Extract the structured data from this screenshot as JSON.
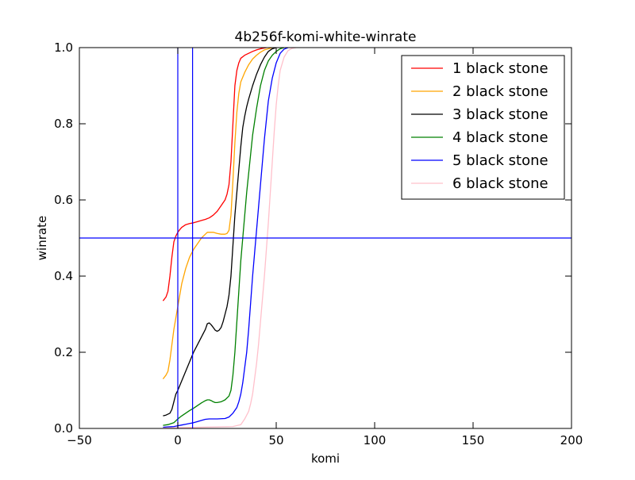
{
  "chart_data": {
    "type": "line",
    "title": "4b256f-komi-white-winrate",
    "xlabel": "komi",
    "ylabel": "winrate",
    "xlim": [
      -50,
      200
    ],
    "ylim": [
      0.0,
      1.0
    ],
    "xticks": [
      "−50",
      "0",
      "50",
      "100",
      "150",
      "200"
    ],
    "xtick_values": [
      -50,
      0,
      50,
      100,
      150,
      200
    ],
    "yticks": [
      "0.0",
      "0.2",
      "0.4",
      "0.6",
      "0.8",
      "1.0"
    ],
    "ytick_values": [
      0.0,
      0.2,
      0.4,
      0.6,
      0.8,
      1.0
    ],
    "grid": false,
    "legend_position": "top-right",
    "reference_lines": {
      "vertical_x": [
        0,
        7.5
      ],
      "horizontal_y": [
        0.5
      ],
      "color": "#0000ff"
    },
    "series": [
      {
        "name": "1 black stone",
        "color": "#ff0000",
        "points": [
          [
            -7.5,
            0.335
          ],
          [
            -6,
            0.345
          ],
          [
            -5,
            0.36
          ],
          [
            -4,
            0.4
          ],
          [
            -3,
            0.45
          ],
          [
            -2,
            0.49
          ],
          [
            -1,
            0.505
          ],
          [
            0,
            0.515
          ],
          [
            1,
            0.522
          ],
          [
            2,
            0.528
          ],
          [
            4,
            0.535
          ],
          [
            6,
            0.538
          ],
          [
            8,
            0.54
          ],
          [
            10,
            0.543
          ],
          [
            12,
            0.546
          ],
          [
            14,
            0.549
          ],
          [
            16,
            0.553
          ],
          [
            18,
            0.56
          ],
          [
            20,
            0.57
          ],
          [
            22,
            0.585
          ],
          [
            24,
            0.6
          ],
          [
            25,
            0.615
          ],
          [
            26,
            0.64
          ],
          [
            27,
            0.7
          ],
          [
            28,
            0.8
          ],
          [
            29,
            0.9
          ],
          [
            30,
            0.94
          ],
          [
            31,
            0.96
          ],
          [
            32,
            0.972
          ],
          [
            34,
            0.98
          ],
          [
            36,
            0.985
          ],
          [
            38,
            0.99
          ],
          [
            40,
            0.994
          ],
          [
            42,
            0.997
          ],
          [
            45,
            1.0
          ]
        ]
      },
      {
        "name": "2 black stone",
        "color": "#ffa500",
        "points": [
          [
            -7.5,
            0.13
          ],
          [
            -6,
            0.14
          ],
          [
            -5,
            0.15
          ],
          [
            -4,
            0.18
          ],
          [
            -3,
            0.22
          ],
          [
            -2,
            0.26
          ],
          [
            -1,
            0.29
          ],
          [
            0,
            0.32
          ],
          [
            2,
            0.38
          ],
          [
            4,
            0.42
          ],
          [
            6,
            0.45
          ],
          [
            8,
            0.47
          ],
          [
            10,
            0.485
          ],
          [
            12,
            0.5
          ],
          [
            14,
            0.51
          ],
          [
            15,
            0.515
          ],
          [
            16,
            0.515
          ],
          [
            18,
            0.515
          ],
          [
            20,
            0.512
          ],
          [
            22,
            0.51
          ],
          [
            24,
            0.51
          ],
          [
            25,
            0.512
          ],
          [
            26,
            0.52
          ],
          [
            27,
            0.56
          ],
          [
            28,
            0.65
          ],
          [
            29,
            0.75
          ],
          [
            30,
            0.83
          ],
          [
            31,
            0.88
          ],
          [
            32,
            0.91
          ],
          [
            34,
            0.935
          ],
          [
            36,
            0.955
          ],
          [
            38,
            0.97
          ],
          [
            40,
            0.98
          ],
          [
            42,
            0.988
          ],
          [
            44,
            0.994
          ],
          [
            46,
            0.997
          ],
          [
            48,
            1.0
          ]
        ]
      },
      {
        "name": "3 black stone",
        "color": "#000000",
        "points": [
          [
            -7.5,
            0.033
          ],
          [
            -6,
            0.035
          ],
          [
            -4,
            0.04
          ],
          [
            -3,
            0.05
          ],
          [
            -2,
            0.07
          ],
          [
            -1,
            0.09
          ],
          [
            0,
            0.1
          ],
          [
            2,
            0.125
          ],
          [
            4,
            0.15
          ],
          [
            6,
            0.175
          ],
          [
            8,
            0.2
          ],
          [
            10,
            0.22
          ],
          [
            12,
            0.24
          ],
          [
            14,
            0.26
          ],
          [
            15,
            0.275
          ],
          [
            16,
            0.277
          ],
          [
            17,
            0.272
          ],
          [
            18,
            0.265
          ],
          [
            19,
            0.258
          ],
          [
            20,
            0.255
          ],
          [
            21,
            0.258
          ],
          [
            22,
            0.265
          ],
          [
            23,
            0.28
          ],
          [
            24,
            0.3
          ],
          [
            25,
            0.32
          ],
          [
            26,
            0.35
          ],
          [
            27,
            0.4
          ],
          [
            28,
            0.48
          ],
          [
            29,
            0.56
          ],
          [
            30,
            0.62
          ],
          [
            31,
            0.68
          ],
          [
            32,
            0.74
          ],
          [
            33,
            0.79
          ],
          [
            34,
            0.82
          ],
          [
            35,
            0.845
          ],
          [
            36,
            0.865
          ],
          [
            38,
            0.9
          ],
          [
            40,
            0.93
          ],
          [
            42,
            0.955
          ],
          [
            44,
            0.975
          ],
          [
            46,
            0.99
          ],
          [
            48,
            0.997
          ],
          [
            50,
            1.0
          ]
        ]
      },
      {
        "name": "4 black stone",
        "color": "#008000",
        "points": [
          [
            -7.5,
            0.008
          ],
          [
            -5,
            0.01
          ],
          [
            -2,
            0.015
          ],
          [
            0,
            0.025
          ],
          [
            2,
            0.033
          ],
          [
            4,
            0.04
          ],
          [
            6,
            0.047
          ],
          [
            8,
            0.053
          ],
          [
            10,
            0.06
          ],
          [
            12,
            0.067
          ],
          [
            14,
            0.073
          ],
          [
            15,
            0.075
          ],
          [
            16,
            0.075
          ],
          [
            17,
            0.073
          ],
          [
            18,
            0.07
          ],
          [
            19,
            0.068
          ],
          [
            20,
            0.068
          ],
          [
            22,
            0.07
          ],
          [
            24,
            0.075
          ],
          [
            26,
            0.085
          ],
          [
            27,
            0.1
          ],
          [
            28,
            0.14
          ],
          [
            29,
            0.2
          ],
          [
            30,
            0.28
          ],
          [
            31,
            0.36
          ],
          [
            32,
            0.44
          ],
          [
            33,
            0.5
          ],
          [
            34,
            0.56
          ],
          [
            35,
            0.62
          ],
          [
            36,
            0.67
          ],
          [
            37,
            0.72
          ],
          [
            38,
            0.77
          ],
          [
            40,
            0.84
          ],
          [
            42,
            0.9
          ],
          [
            44,
            0.94
          ],
          [
            46,
            0.965
          ],
          [
            48,
            0.98
          ],
          [
            50,
            0.99
          ],
          [
            52,
            0.997
          ],
          [
            54,
            1.0
          ]
        ]
      },
      {
        "name": "5 black stone",
        "color": "#0000ff",
        "points": [
          [
            -7.5,
            0.003
          ],
          [
            -5,
            0.004
          ],
          [
            -2,
            0.005
          ],
          [
            0,
            0.007
          ],
          [
            2,
            0.009
          ],
          [
            4,
            0.011
          ],
          [
            6,
            0.013
          ],
          [
            8,
            0.015
          ],
          [
            10,
            0.018
          ],
          [
            12,
            0.021
          ],
          [
            14,
            0.024
          ],
          [
            16,
            0.025
          ],
          [
            20,
            0.025
          ],
          [
            24,
            0.026
          ],
          [
            26,
            0.03
          ],
          [
            28,
            0.04
          ],
          [
            30,
            0.055
          ],
          [
            31,
            0.07
          ],
          [
            32,
            0.09
          ],
          [
            33,
            0.12
          ],
          [
            34,
            0.16
          ],
          [
            35,
            0.2
          ],
          [
            36,
            0.26
          ],
          [
            37,
            0.33
          ],
          [
            38,
            0.4
          ],
          [
            39,
            0.46
          ],
          [
            40,
            0.52
          ],
          [
            41,
            0.58
          ],
          [
            42,
            0.64
          ],
          [
            43,
            0.7
          ],
          [
            44,
            0.76
          ],
          [
            45,
            0.81
          ],
          [
            46,
            0.86
          ],
          [
            48,
            0.92
          ],
          [
            50,
            0.96
          ],
          [
            52,
            0.985
          ],
          [
            54,
            0.996
          ],
          [
            56,
            1.0
          ]
        ]
      },
      {
        "name": "6 black stone",
        "color": "#ffc0cb",
        "points": [
          [
            -7.5,
            0.001
          ],
          [
            0,
            0.002
          ],
          [
            10,
            0.003
          ],
          [
            20,
            0.004
          ],
          [
            28,
            0.005
          ],
          [
            32,
            0.01
          ],
          [
            34,
            0.025
          ],
          [
            36,
            0.045
          ],
          [
            37,
            0.065
          ],
          [
            38,
            0.09
          ],
          [
            39,
            0.13
          ],
          [
            40,
            0.17
          ],
          [
            41,
            0.22
          ],
          [
            42,
            0.28
          ],
          [
            43,
            0.34
          ],
          [
            44,
            0.4
          ],
          [
            45,
            0.47
          ],
          [
            46,
            0.54
          ],
          [
            47,
            0.62
          ],
          [
            48,
            0.7
          ],
          [
            49,
            0.78
          ],
          [
            50,
            0.85
          ],
          [
            51,
            0.9
          ],
          [
            52,
            0.94
          ],
          [
            54,
            0.975
          ],
          [
            56,
            0.992
          ],
          [
            58,
            0.998
          ],
          [
            60,
            1.0
          ]
        ]
      }
    ]
  }
}
